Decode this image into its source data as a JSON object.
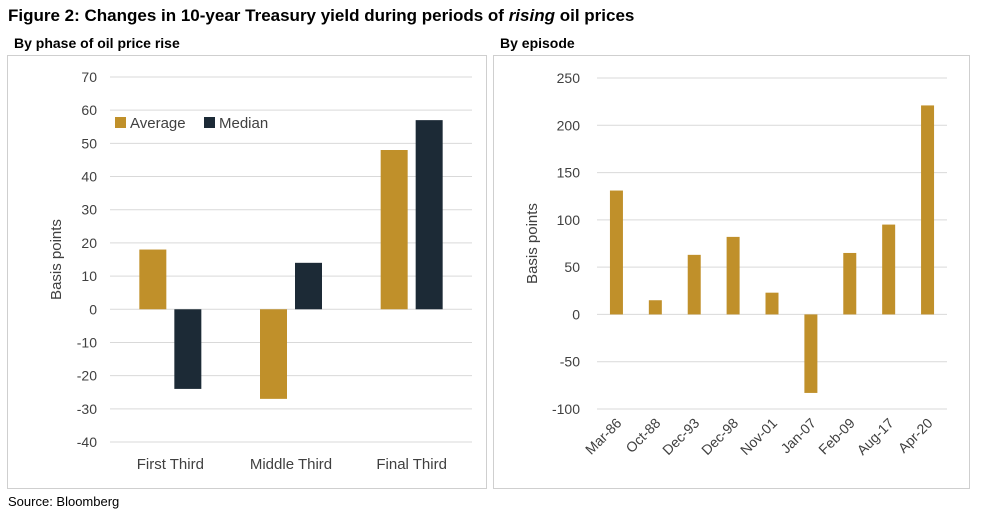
{
  "figure": {
    "title_prefix": "Figure 2: Changes in 10-year Treasury yield during periods of ",
    "title_emphasis": "rising",
    "title_suffix": " oil prices",
    "source": "Source: Bloomberg"
  },
  "colors": {
    "average": "#C0902A",
    "median": "#1C2A36",
    "grid": "#D9D9D9",
    "axis_text": "#404040"
  },
  "chart_data": [
    {
      "type": "bar",
      "panel_title": "By phase of oil price rise",
      "categories": [
        "First Third",
        "Middle Third",
        "Final Third"
      ],
      "series": [
        {
          "name": "Average",
          "values": [
            18,
            -27,
            48
          ]
        },
        {
          "name": "Median",
          "values": [
            -24,
            14,
            57
          ]
        }
      ],
      "ylabel": "Basis points",
      "ylim": [
        -40,
        70
      ],
      "yticks": [
        70,
        60,
        50,
        40,
        30,
        20,
        10,
        0,
        -10,
        -20,
        -30,
        -40
      ],
      "grid": true,
      "legend": "top-left"
    },
    {
      "type": "bar",
      "panel_title": "By episode",
      "categories": [
        "Mar-86",
        "Oct-88",
        "Dec-93",
        "Dec-98",
        "Nov-01",
        "Jan-07",
        "Feb-09",
        "Aug-17",
        "Apr-20"
      ],
      "values": [
        131,
        15,
        63,
        82,
        23,
        -83,
        65,
        95,
        221
      ],
      "ylabel": "Basis points",
      "ylim": [
        -100,
        250
      ],
      "yticks": [
        250,
        200,
        150,
        100,
        50,
        0,
        -50,
        -100
      ],
      "grid": true,
      "xtick_rotation": -45
    }
  ]
}
